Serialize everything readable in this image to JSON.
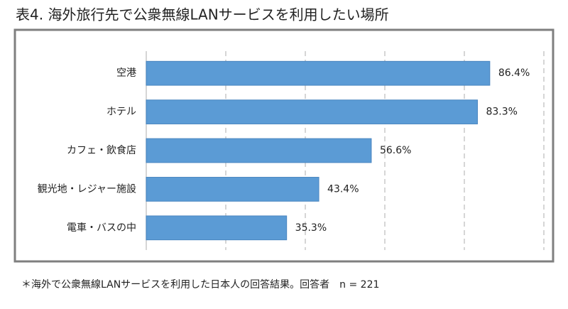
{
  "chart_data": {
    "type": "bar",
    "orientation": "horizontal",
    "title": "表4. 海外旅行先で公衆無線LANサービスを利用したい場所",
    "categories": [
      "空港",
      "ホテル",
      "カフェ・飲食店",
      "観光地・レジャー施設",
      "電車・バスの中"
    ],
    "values": [
      86.4,
      83.3,
      56.6,
      43.4,
      35.3
    ],
    "value_labels": [
      "86.4%",
      "83.3%",
      "56.6%",
      "43.4%",
      "35.3%"
    ],
    "color": "#5b9bd5",
    "xlim": [
      0,
      100
    ],
    "xticks": [
      0,
      20,
      40,
      60,
      80,
      100
    ],
    "grid": true,
    "footnote": "＊海外で公衆無線LANサービスを利用した日本人の回答結果。回答者　n = 221"
  }
}
